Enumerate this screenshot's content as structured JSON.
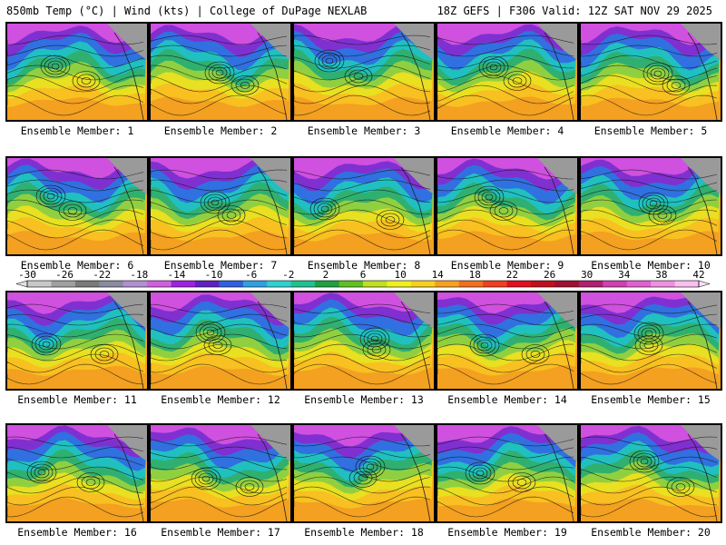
{
  "header": {
    "left": "850mb Temp (°C) | Wind (kts) | College of DuPage NEXLAB",
    "right": "18Z GEFS | F306 Valid: 12Z SAT NOV 29 2025"
  },
  "member_prefix": "Ensemble Member:",
  "members": [
    "1",
    "2",
    "3",
    "4",
    "5",
    "6",
    "7",
    "8",
    "9",
    "10",
    "11",
    "12",
    "13",
    "14",
    "15",
    "16",
    "17",
    "18",
    "19",
    "20"
  ],
  "legend": {
    "ticks": [
      "-30",
      "-26",
      "-22",
      "-18",
      "-14",
      "-10",
      "-6",
      "-2",
      "2",
      "6",
      "10",
      "14",
      "18",
      "22",
      "26",
      "30",
      "34",
      "38",
      "42"
    ],
    "colors": [
      "#c8c8c8",
      "#a0a0a0",
      "#7a7a7a",
      "#8a8aa0",
      "#b090d0",
      "#d060e0",
      "#a020e0",
      "#6020c0",
      "#3060e0",
      "#30a0e0",
      "#30d0d0",
      "#20c090",
      "#20a040",
      "#60c020",
      "#c0e020",
      "#f0f020",
      "#f8d020",
      "#f8a020",
      "#f07020",
      "#f04020",
      "#e01020",
      "#c01020",
      "#a01030",
      "#b02070",
      "#d040b0",
      "#e060d0",
      "#f090e0",
      "#f8c0f0"
    ]
  }
}
